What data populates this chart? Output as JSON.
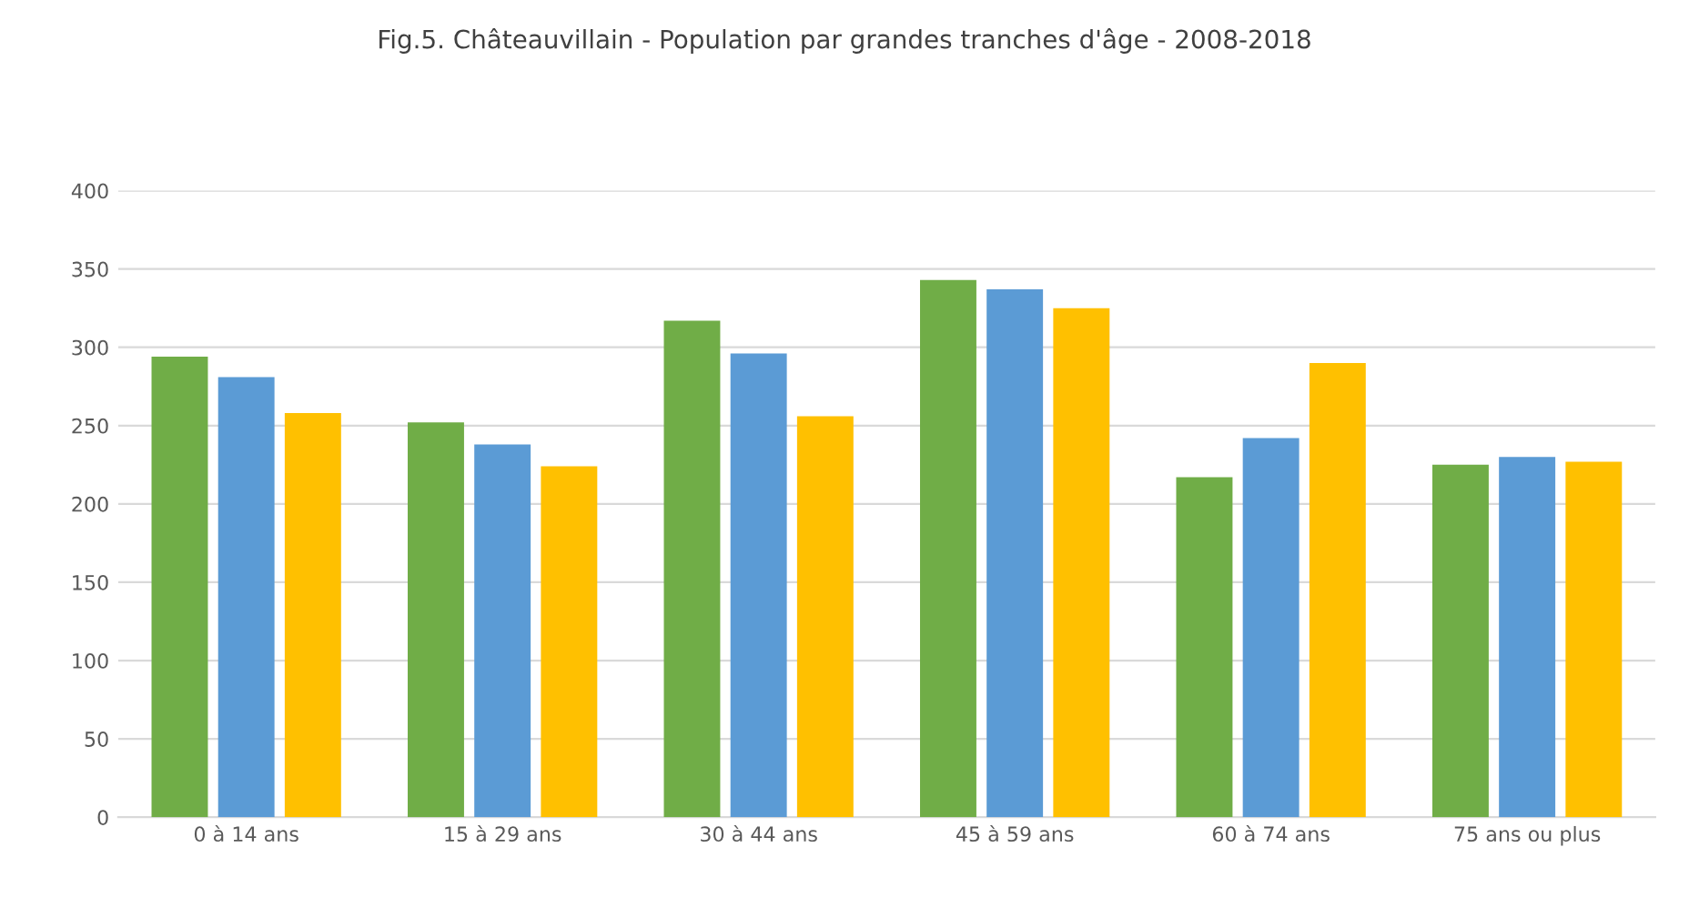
{
  "chart_data": {
    "type": "bar",
    "title": "Fig.5. Châteauvillain - Population par grandes tranches d'âge - 2008-2018",
    "categories": [
      "0 à 14 ans",
      "15 à 29 ans",
      "30 à 44 ans",
      "45 à 59 ans",
      "60 à 74 ans",
      "75 ans ou plus"
    ],
    "series": [
      {
        "color": "#70ad47",
        "values": [
          294,
          252,
          317,
          343,
          217,
          225
        ]
      },
      {
        "color": "#5b9bd5",
        "values": [
          281,
          238,
          296,
          337,
          242,
          230
        ]
      },
      {
        "color": "#ffc000",
        "values": [
          258,
          224,
          256,
          325,
          290,
          227
        ]
      }
    ],
    "ylim": [
      0,
      400
    ],
    "yticks": [
      0,
      50,
      100,
      150,
      200,
      250,
      300,
      350,
      400
    ],
    "grid": "y"
  }
}
